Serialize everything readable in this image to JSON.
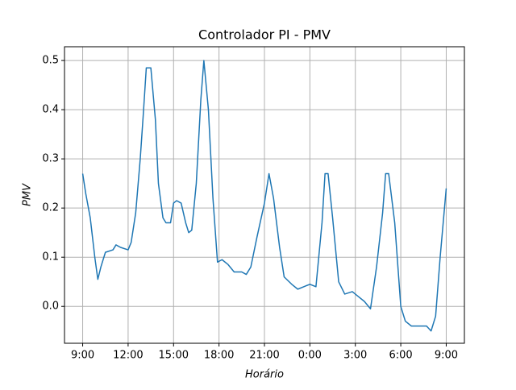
{
  "chart_data": {
    "type": "line",
    "title": "Controlador PI - PMV",
    "xlabel": "Horário",
    "ylabel": "PMV",
    "x": [
      0,
      0.2,
      0.5,
      0.8,
      1.0,
      1.2,
      1.5,
      2.0,
      2.2,
      2.5,
      3.0,
      3.2,
      3.5,
      3.8,
      4.0,
      4.2,
      4.5,
      4.8,
      5.0,
      5.3,
      5.5,
      5.8,
      6.0,
      6.2,
      6.5,
      6.8,
      7.0,
      7.2,
      7.5,
      7.8,
      8.0,
      8.3,
      8.6,
      8.9,
      9.2,
      9.6,
      10.0,
      10.5,
      10.8,
      11.1,
      11.5,
      12.0,
      12.3,
      12.6,
      13.0,
      13.3,
      13.8,
      14.2,
      14.6,
      15.0,
      15.4,
      15.8,
      16.0,
      16.2,
      16.5,
      16.9,
      17.3,
      17.8,
      18.2,
      18.6,
      19.0,
      19.4,
      19.8,
      20.0,
      20.2,
      20.6,
      21.0,
      21.3,
      21.7,
      22.2,
      22.7,
      23.0,
      23.3,
      23.6,
      24.0
    ],
    "values": [
      0.27,
      0.23,
      0.18,
      0.1,
      0.055,
      0.08,
      0.11,
      0.115,
      0.125,
      0.12,
      0.115,
      0.13,
      0.19,
      0.3,
      0.39,
      0.485,
      0.485,
      0.38,
      0.25,
      0.18,
      0.17,
      0.17,
      0.21,
      0.215,
      0.21,
      0.17,
      0.15,
      0.155,
      0.25,
      0.42,
      0.5,
      0.4,
      0.22,
      0.09,
      0.095,
      0.085,
      0.07,
      0.07,
      0.065,
      0.08,
      0.14,
      0.21,
      0.27,
      0.22,
      0.12,
      0.06,
      0.045,
      0.035,
      0.04,
      0.045,
      0.04,
      0.17,
      0.27,
      0.27,
      0.18,
      0.05,
      0.025,
      0.03,
      0.02,
      0.01,
      -0.005,
      0.08,
      0.19,
      0.27,
      0.27,
      0.17,
      0.0,
      -0.03,
      -0.04,
      -0.04,
      -0.04,
      -0.05,
      -0.02,
      0.1,
      0.24
    ],
    "color": "#1f77b4",
    "xlim": [
      -1.2,
      25.2
    ],
    "xticks": [
      {
        "value": 0,
        "label": "9:00"
      },
      {
        "value": 3,
        "label": "12:00"
      },
      {
        "value": 6,
        "label": "15:00"
      },
      {
        "value": 9,
        "label": "18:00"
      },
      {
        "value": 12,
        "label": "21:00"
      },
      {
        "value": 15,
        "label": "0:00"
      },
      {
        "value": 18,
        "label": "3:00"
      },
      {
        "value": 21,
        "label": "6:00"
      },
      {
        "value": 24,
        "label": "9:00"
      }
    ],
    "ylim": [
      -0.075,
      0.528
    ],
    "yticks": [
      {
        "value": 0,
        "label": "0.0"
      },
      0.1,
      0.2,
      0.3,
      0.4,
      0.5
    ],
    "grid": true
  }
}
